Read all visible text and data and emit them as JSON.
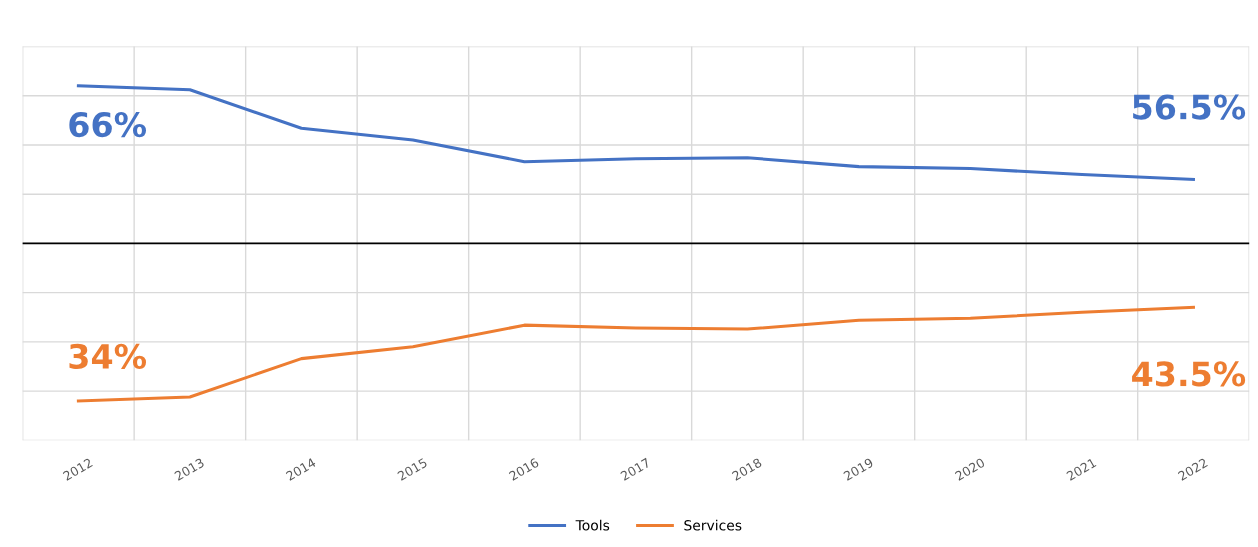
{
  "chart_data": {
    "type": "line",
    "categories": [
      "2012",
      "2013",
      "2014",
      "2015",
      "2016",
      "2017",
      "2018",
      "2019",
      "2020",
      "2021",
      "2022"
    ],
    "series": [
      {
        "name": "Tools",
        "color": "#4472c4",
        "values": [
          66,
          65.6,
          61.7,
          60.5,
          58.3,
          58.6,
          58.7,
          57.8,
          57.6,
          57,
          56.5
        ],
        "value_labels": [
          "66%",
          null,
          null,
          null,
          null,
          null,
          null,
          null,
          null,
          null,
          "56.5%"
        ]
      },
      {
        "name": "Services",
        "color": "#ed7d31",
        "values": [
          34,
          34.4,
          38.3,
          39.5,
          41.7,
          41.4,
          41.3,
          42.2,
          42.4,
          43,
          43.5
        ],
        "value_labels": [
          "34%",
          null,
          null,
          null,
          null,
          null,
          null,
          null,
          null,
          null,
          "43.5%"
        ]
      }
    ],
    "ylim": [
      30,
      70
    ],
    "yticks": [
      {
        "value": 30,
        "label": null
      },
      {
        "value": 35,
        "label": null
      },
      {
        "value": 40,
        "label": null
      },
      {
        "value": 45,
        "label": null
      },
      {
        "value": 50,
        "label": null
      },
      {
        "value": 55,
        "label": null
      },
      {
        "value": 60,
        "label": null
      },
      {
        "value": 65,
        "label": null
      },
      {
        "value": 70,
        "label": null
      }
    ],
    "tick_labels": "x",
    "ref_lines": [
      {
        "axis": "y",
        "value": 50,
        "color": "#000000"
      }
    ],
    "grid": true,
    "legend": "bottom",
    "marker": "none",
    "line_style": "solid"
  }
}
